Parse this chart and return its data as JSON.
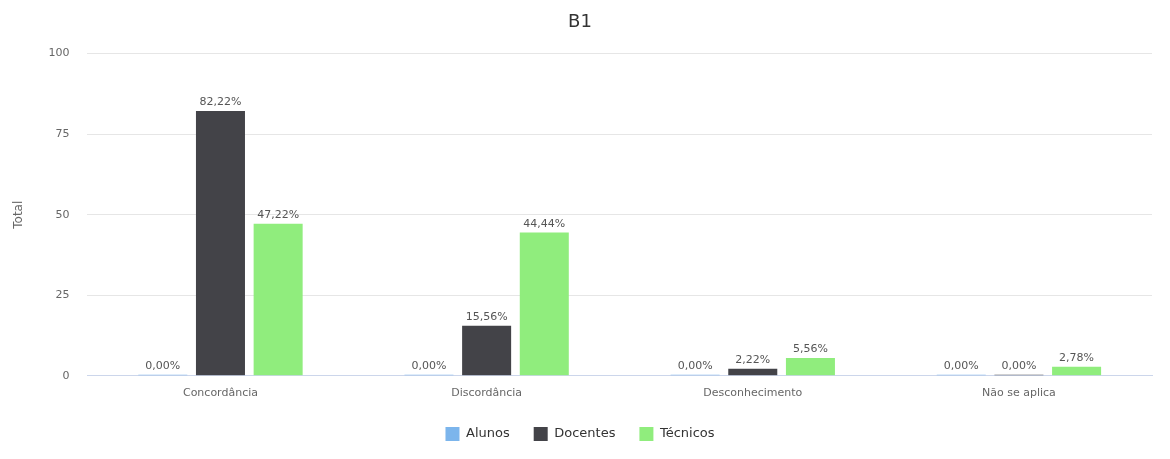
{
  "chart_data": {
    "type": "bar",
    "title": "B1",
    "ylabel": "Total",
    "categories": [
      "Concordância",
      "Discordância",
      "Desconhecimento",
      "Não se aplica"
    ],
    "series": [
      {
        "name": "Alunos",
        "color": "#7cb5ec",
        "values": [
          0,
          0,
          0,
          0
        ],
        "value_labels": [
          "0,00%",
          "0,00%",
          "0,00%",
          "0,00%"
        ]
      },
      {
        "name": "Docentes",
        "color": "#434348",
        "values": [
          82.22,
          15.56,
          2.22,
          0
        ],
        "value_labels": [
          "82,22%",
          "15,56%",
          "2,22%",
          "0,00%"
        ]
      },
      {
        "name": "Técnicos",
        "color": "#90ed7d",
        "values": [
          47.22,
          44.44,
          5.56,
          2.78
        ],
        "value_labels": [
          "47,22%",
          "44,44%",
          "5,56%",
          "2,78%"
        ]
      }
    ],
    "ylim": [
      0,
      100
    ],
    "yticks": [
      0,
      25,
      50,
      75,
      100
    ],
    "grid": "y",
    "legend": "bottom"
  }
}
